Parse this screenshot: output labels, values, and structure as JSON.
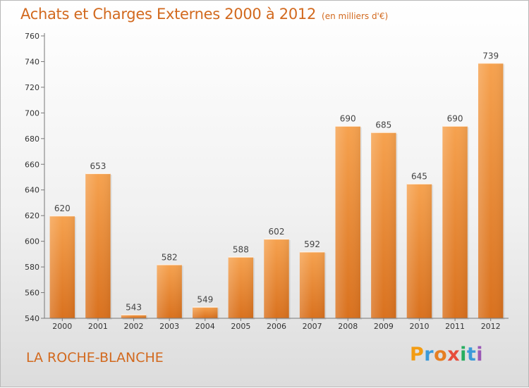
{
  "chart_data": {
    "type": "bar",
    "title": "Achats et Charges Externes 2000 à 2012",
    "subtitle": "(en milliers d'€)",
    "categories": [
      "2000",
      "2001",
      "2002",
      "2003",
      "2004",
      "2005",
      "2006",
      "2007",
      "2008",
      "2009",
      "2010",
      "2011",
      "2012"
    ],
    "values": [
      620,
      653,
      543,
      582,
      549,
      588,
      602,
      592,
      690,
      685,
      645,
      690,
      739
    ],
    "ylim": [
      540,
      760
    ],
    "yticks": [
      540,
      560,
      580,
      600,
      620,
      640,
      660,
      680,
      700,
      720,
      740,
      760
    ],
    "xlabel": "",
    "ylabel": "",
    "grid": false,
    "legend": "none",
    "bar_color": "#e8832a"
  },
  "location": "LA ROCHE-BLANCHE",
  "logo": {
    "letters": [
      "P",
      "r",
      "o",
      "x",
      "i",
      "t",
      "i"
    ],
    "colors": [
      "#f39c12",
      "#3b9ad9",
      "#e67e22",
      "#e74c3c",
      "#27ae60",
      "#3b9ad9",
      "#9b59b6"
    ]
  }
}
